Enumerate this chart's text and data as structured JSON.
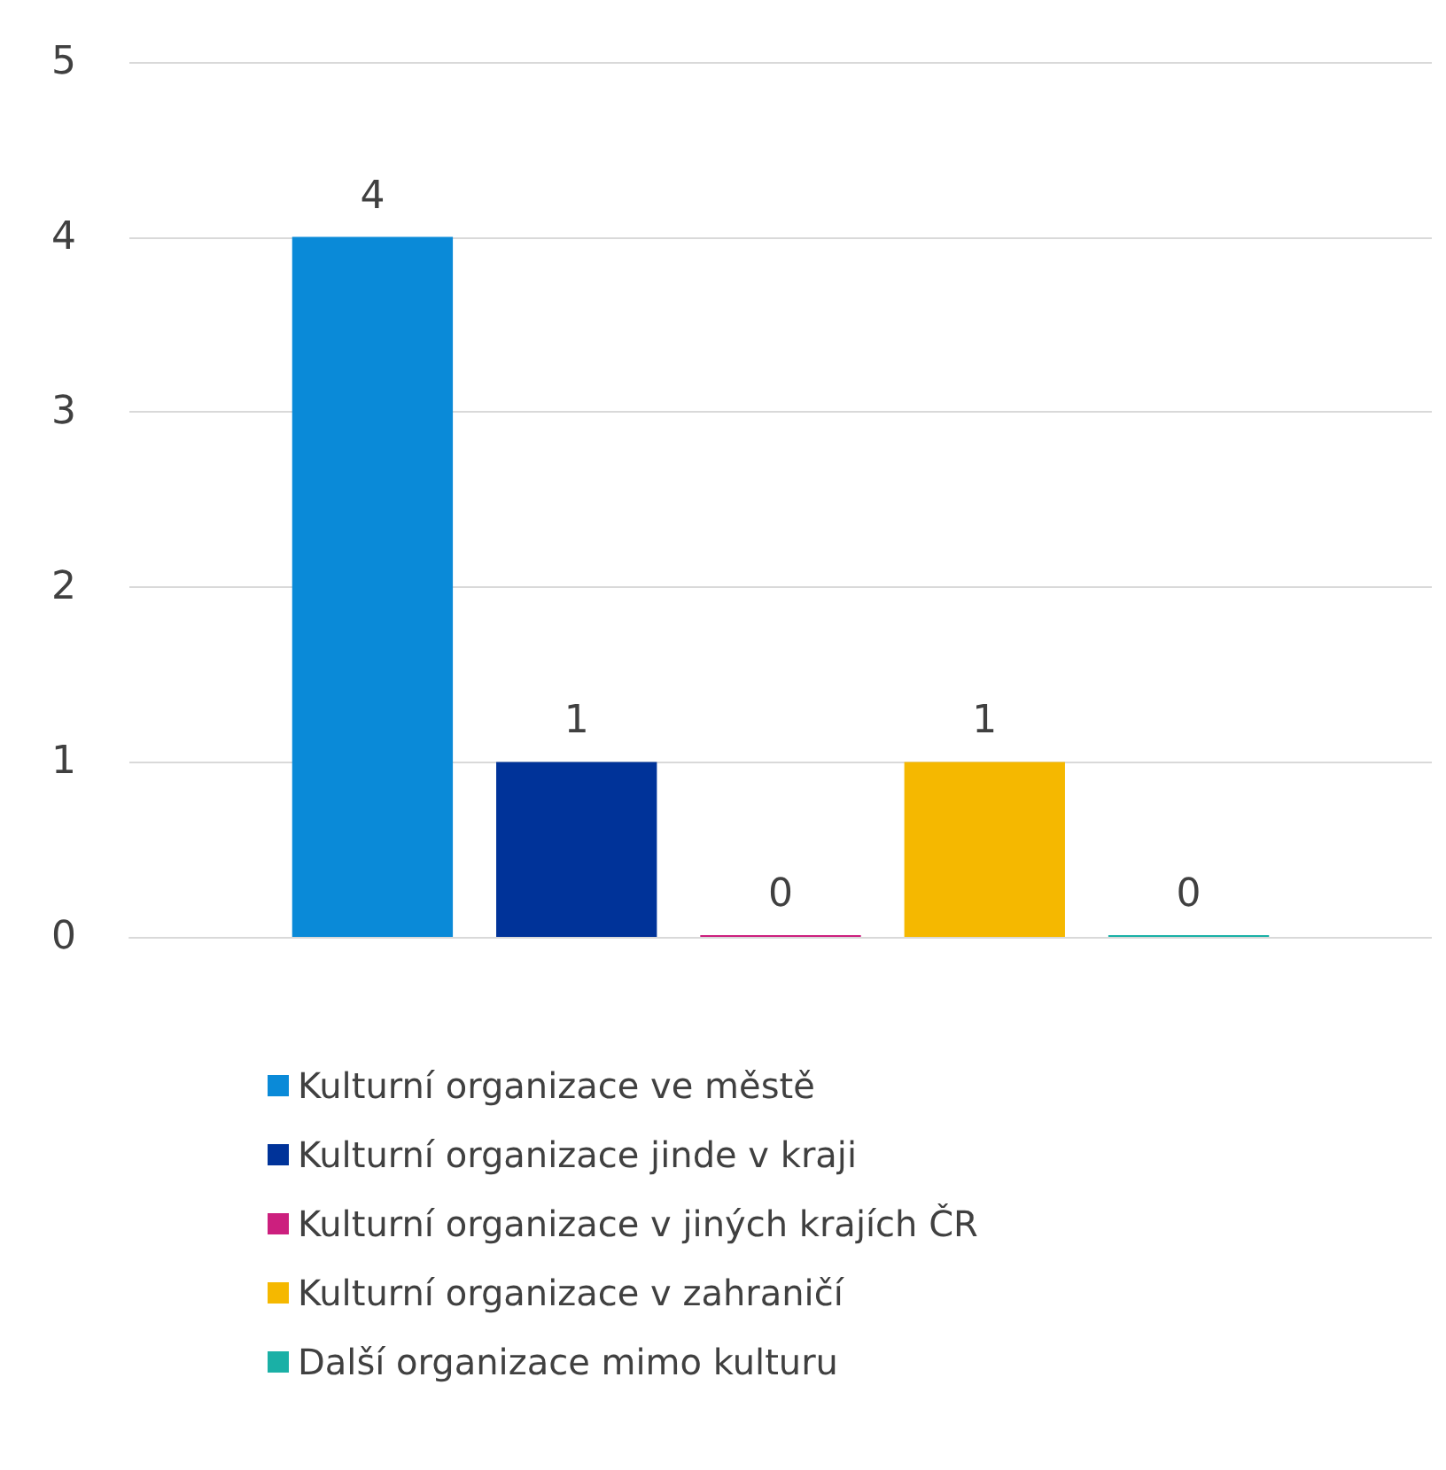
{
  "chart_data": {
    "type": "bar",
    "categories": [
      null
    ],
    "series": [
      {
        "name": "Kulturní organizace ve městě",
        "color": "#0a8ad8",
        "values": [
          4
        ]
      },
      {
        "name": "Kulturní organizace jinde v kraji",
        "color": "#003399",
        "values": [
          1
        ]
      },
      {
        "name": "Kulturní organizace v jiných krajích ČR",
        "color": "#cc1f7e",
        "values": [
          0
        ]
      },
      {
        "name": "Kulturní organizace v zahraničí",
        "color": "#f5b800",
        "values": [
          1
        ]
      },
      {
        "name": "Další organizace mimo kulturu",
        "color": "#1ab0a6",
        "values": [
          0
        ]
      }
    ],
    "ylim": [
      0,
      5
    ],
    "yticks": [
      0,
      1,
      2,
      3,
      4,
      5
    ],
    "grid": "y",
    "legend": "bottom",
    "data_labels": true
  }
}
